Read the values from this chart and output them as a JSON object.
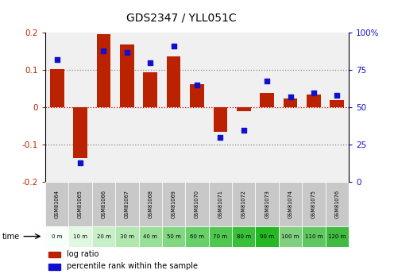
{
  "title": "GDS2347 / YLL051C",
  "samples": [
    "GSM81064",
    "GSM81065",
    "GSM81066",
    "GSM81067",
    "GSM81068",
    "GSM81069",
    "GSM81070",
    "GSM81071",
    "GSM81072",
    "GSM81073",
    "GSM81074",
    "GSM81075",
    "GSM81076"
  ],
  "times": [
    "0 m",
    "10 m",
    "20 m",
    "30 m",
    "40 m",
    "50 m",
    "60 m",
    "70 m",
    "80 m",
    "90 m",
    "100 m",
    "110 m",
    "120 m"
  ],
  "log_ratio": [
    0.103,
    -0.135,
    0.197,
    0.168,
    0.095,
    0.138,
    0.063,
    -0.065,
    -0.01,
    0.04,
    0.025,
    0.035,
    0.02
  ],
  "percentile": [
    82,
    13,
    88,
    87,
    80,
    91,
    65,
    30,
    35,
    68,
    57,
    60,
    58
  ],
  "ylim": [
    -0.2,
    0.2
  ],
  "y2lim": [
    0,
    100
  ],
  "yticks": [
    -0.2,
    -0.1,
    0.0,
    0.1,
    0.2
  ],
  "y2ticks_vals": [
    0,
    25,
    50,
    75,
    100
  ],
  "y2ticks_labels": [
    "0",
    "25",
    "50",
    "75",
    "100%"
  ],
  "bar_color": "#bb2200",
  "dot_color": "#1111cc",
  "zero_line_color": "#cc0000",
  "grid_line_color": "#888888",
  "bg_color": "#ffffff",
  "plot_bg": "#f0f0f0",
  "sample_bg": "#c8c8c8",
  "time_colors": [
    "#f8fff8",
    "#e0f8e0",
    "#c8f0c8",
    "#b0e8b0",
    "#98e098",
    "#80d880",
    "#68d068",
    "#50c850",
    "#38c038",
    "#25b825",
    "#80d080",
    "#60c860",
    "#40bb40"
  ]
}
